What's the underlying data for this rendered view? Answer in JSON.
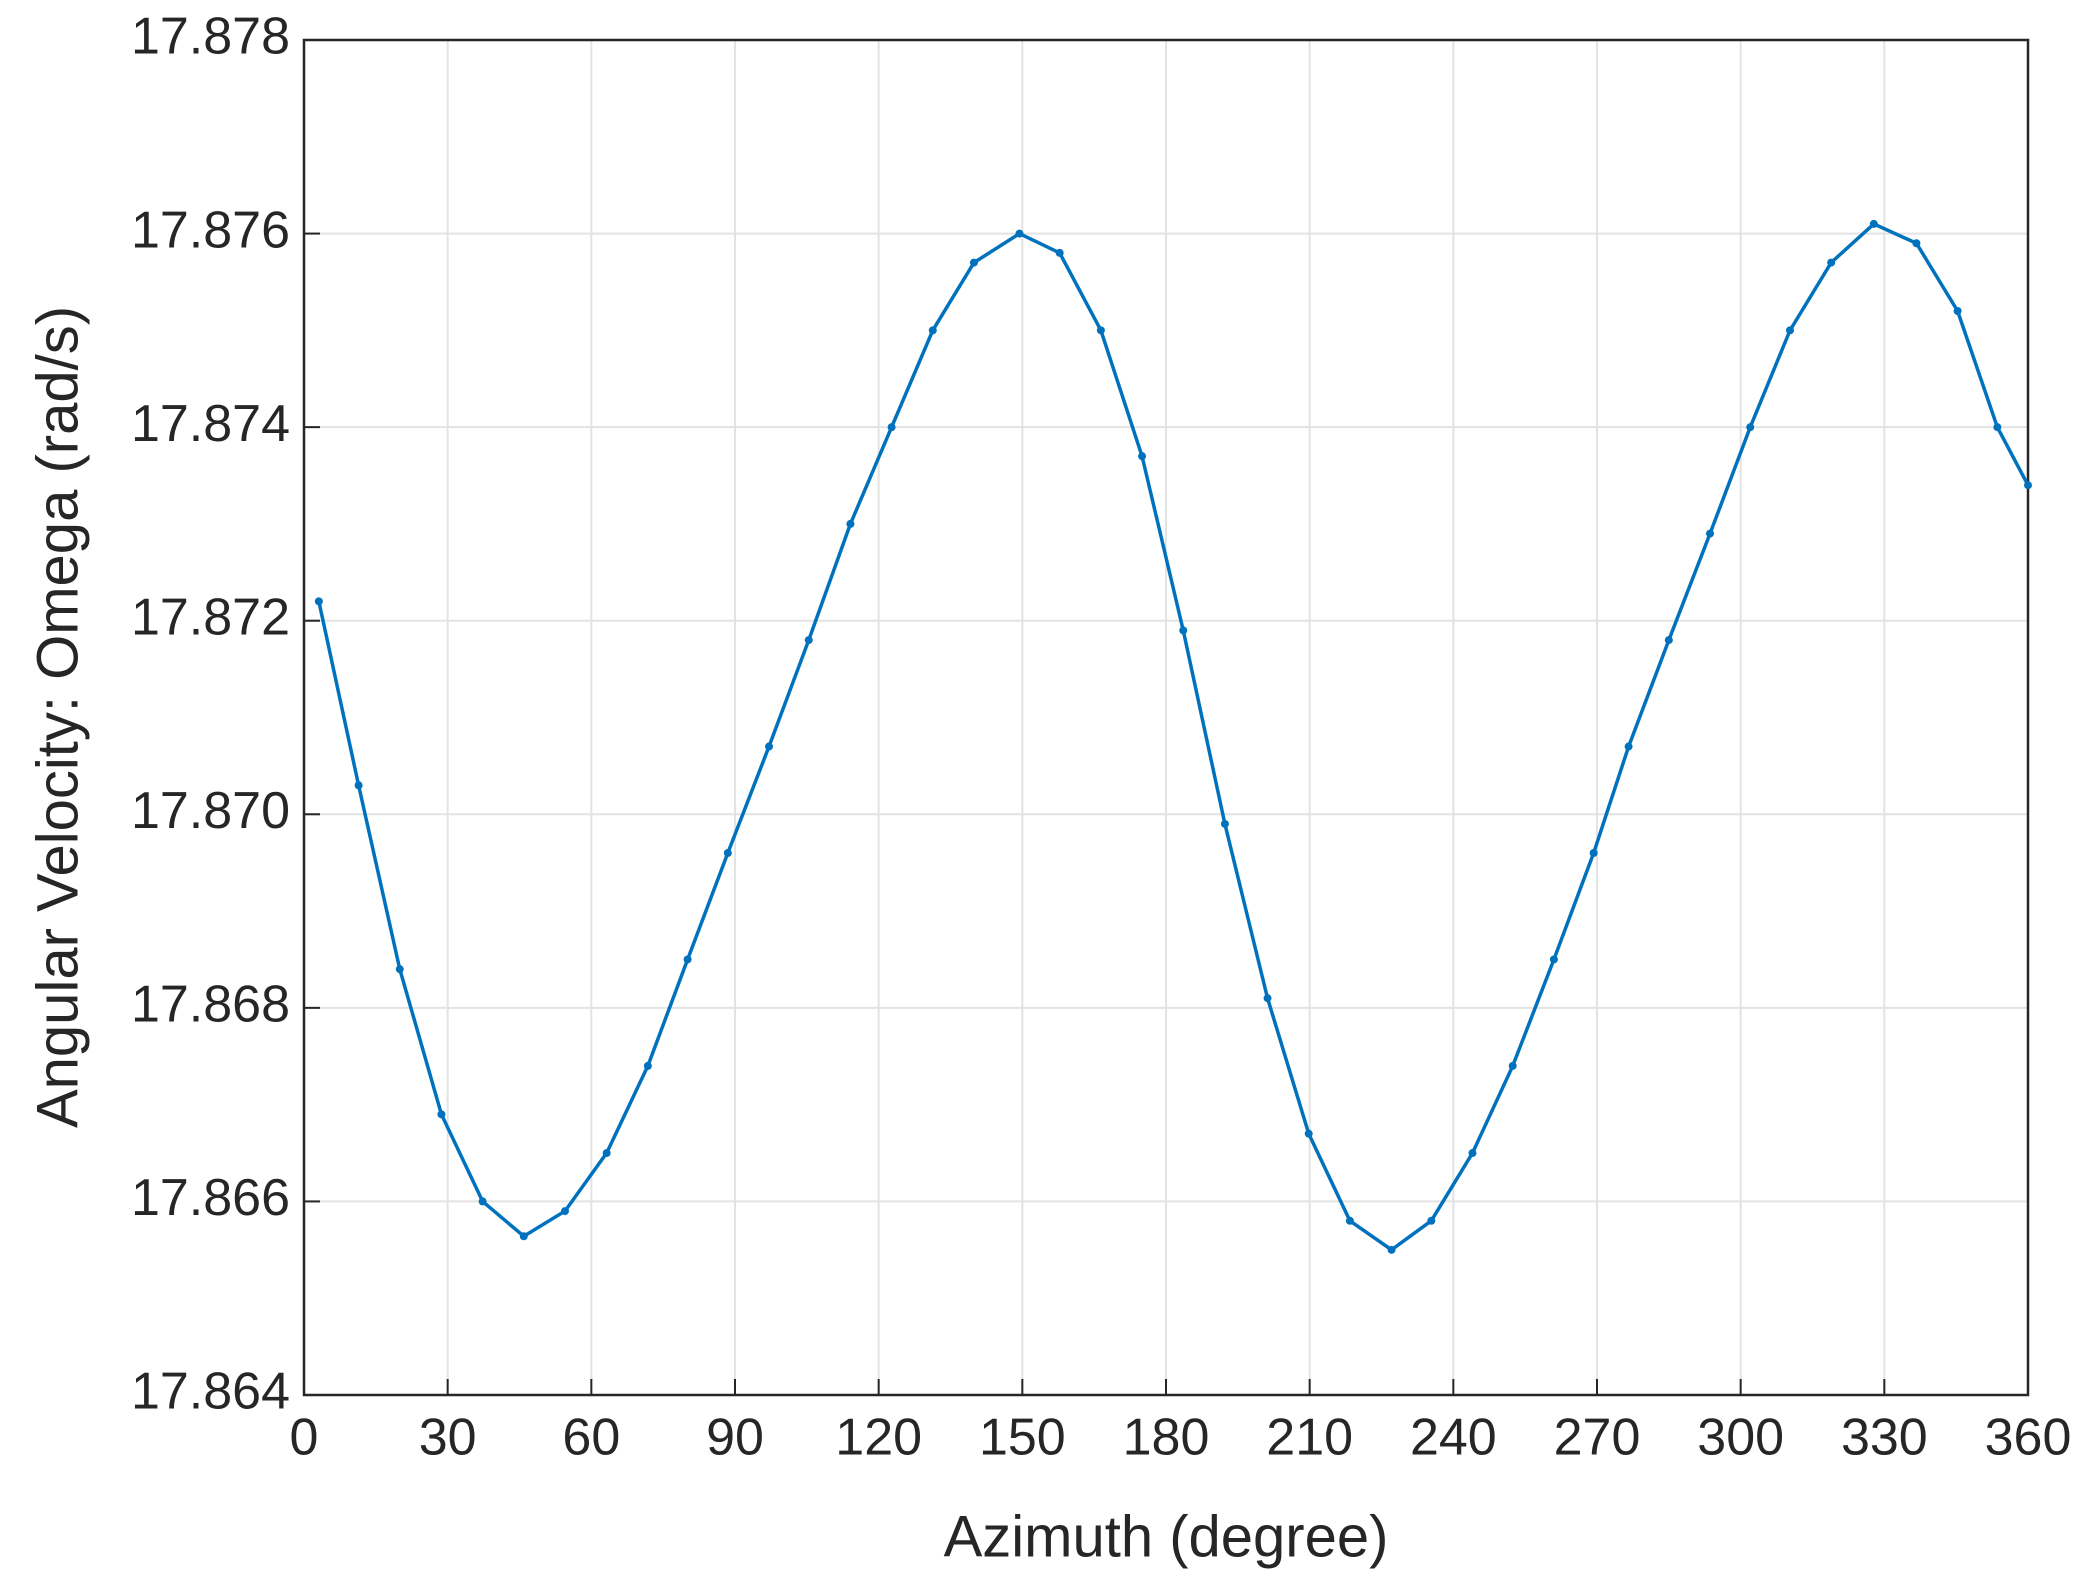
{
  "chart_data": {
    "type": "line",
    "xlabel": "Azimuth (degree)",
    "ylabel": "Angular Velocity: Omega (rad/s)",
    "xlim": [
      0,
      360
    ],
    "xticks": [
      0,
      30,
      60,
      90,
      120,
      150,
      180,
      210,
      240,
      270,
      300,
      330,
      360
    ],
    "ylim": [
      17.864,
      17.878
    ],
    "yticks": [
      17.864,
      17.866,
      17.868,
      {
        "value": 17.87,
        "label": "17.870"
      },
      17.872,
      17.874,
      17.876,
      17.878
    ],
    "grid": true,
    "series": [
      {
        "name": "Omega",
        "color": "#0072bd",
        "x": [
          3.1,
          11.4,
          20.0,
          28.7,
          37.3,
          45.9,
          54.5,
          63.2,
          71.8,
          80.1,
          88.5,
          97.1,
          105.4,
          114.1,
          122.7,
          131.3,
          139.9,
          149.4,
          157.8,
          166.4,
          175.0,
          183.6,
          192.3,
          201.2,
          209.8,
          218.4,
          227.1,
          235.4,
          244.0,
          252.4,
          261.0,
          269.3,
          276.6,
          285.0,
          293.6,
          302.0,
          310.3,
          318.9,
          327.8,
          336.7,
          345.3,
          353.6,
          360
        ],
        "values": [
          17.8722,
          17.8703,
          17.8684,
          17.8669,
          17.866,
          17.86564,
          17.8659,
          17.8665,
          17.8674,
          17.8685,
          17.8696,
          17.8707,
          17.8718,
          17.873,
          17.874,
          17.875,
          17.8757,
          17.876,
          17.8758,
          17.875,
          17.8737,
          17.8719,
          17.8699,
          17.8681,
          17.8667,
          17.8658,
          17.8655,
          17.8658,
          17.8665,
          17.8674,
          17.8685,
          17.8696,
          17.8707,
          17.8718,
          17.8729,
          17.874,
          17.875,
          17.8757,
          17.8761,
          17.8759,
          17.8752,
          17.874,
          17.8734
        ]
      }
    ]
  }
}
